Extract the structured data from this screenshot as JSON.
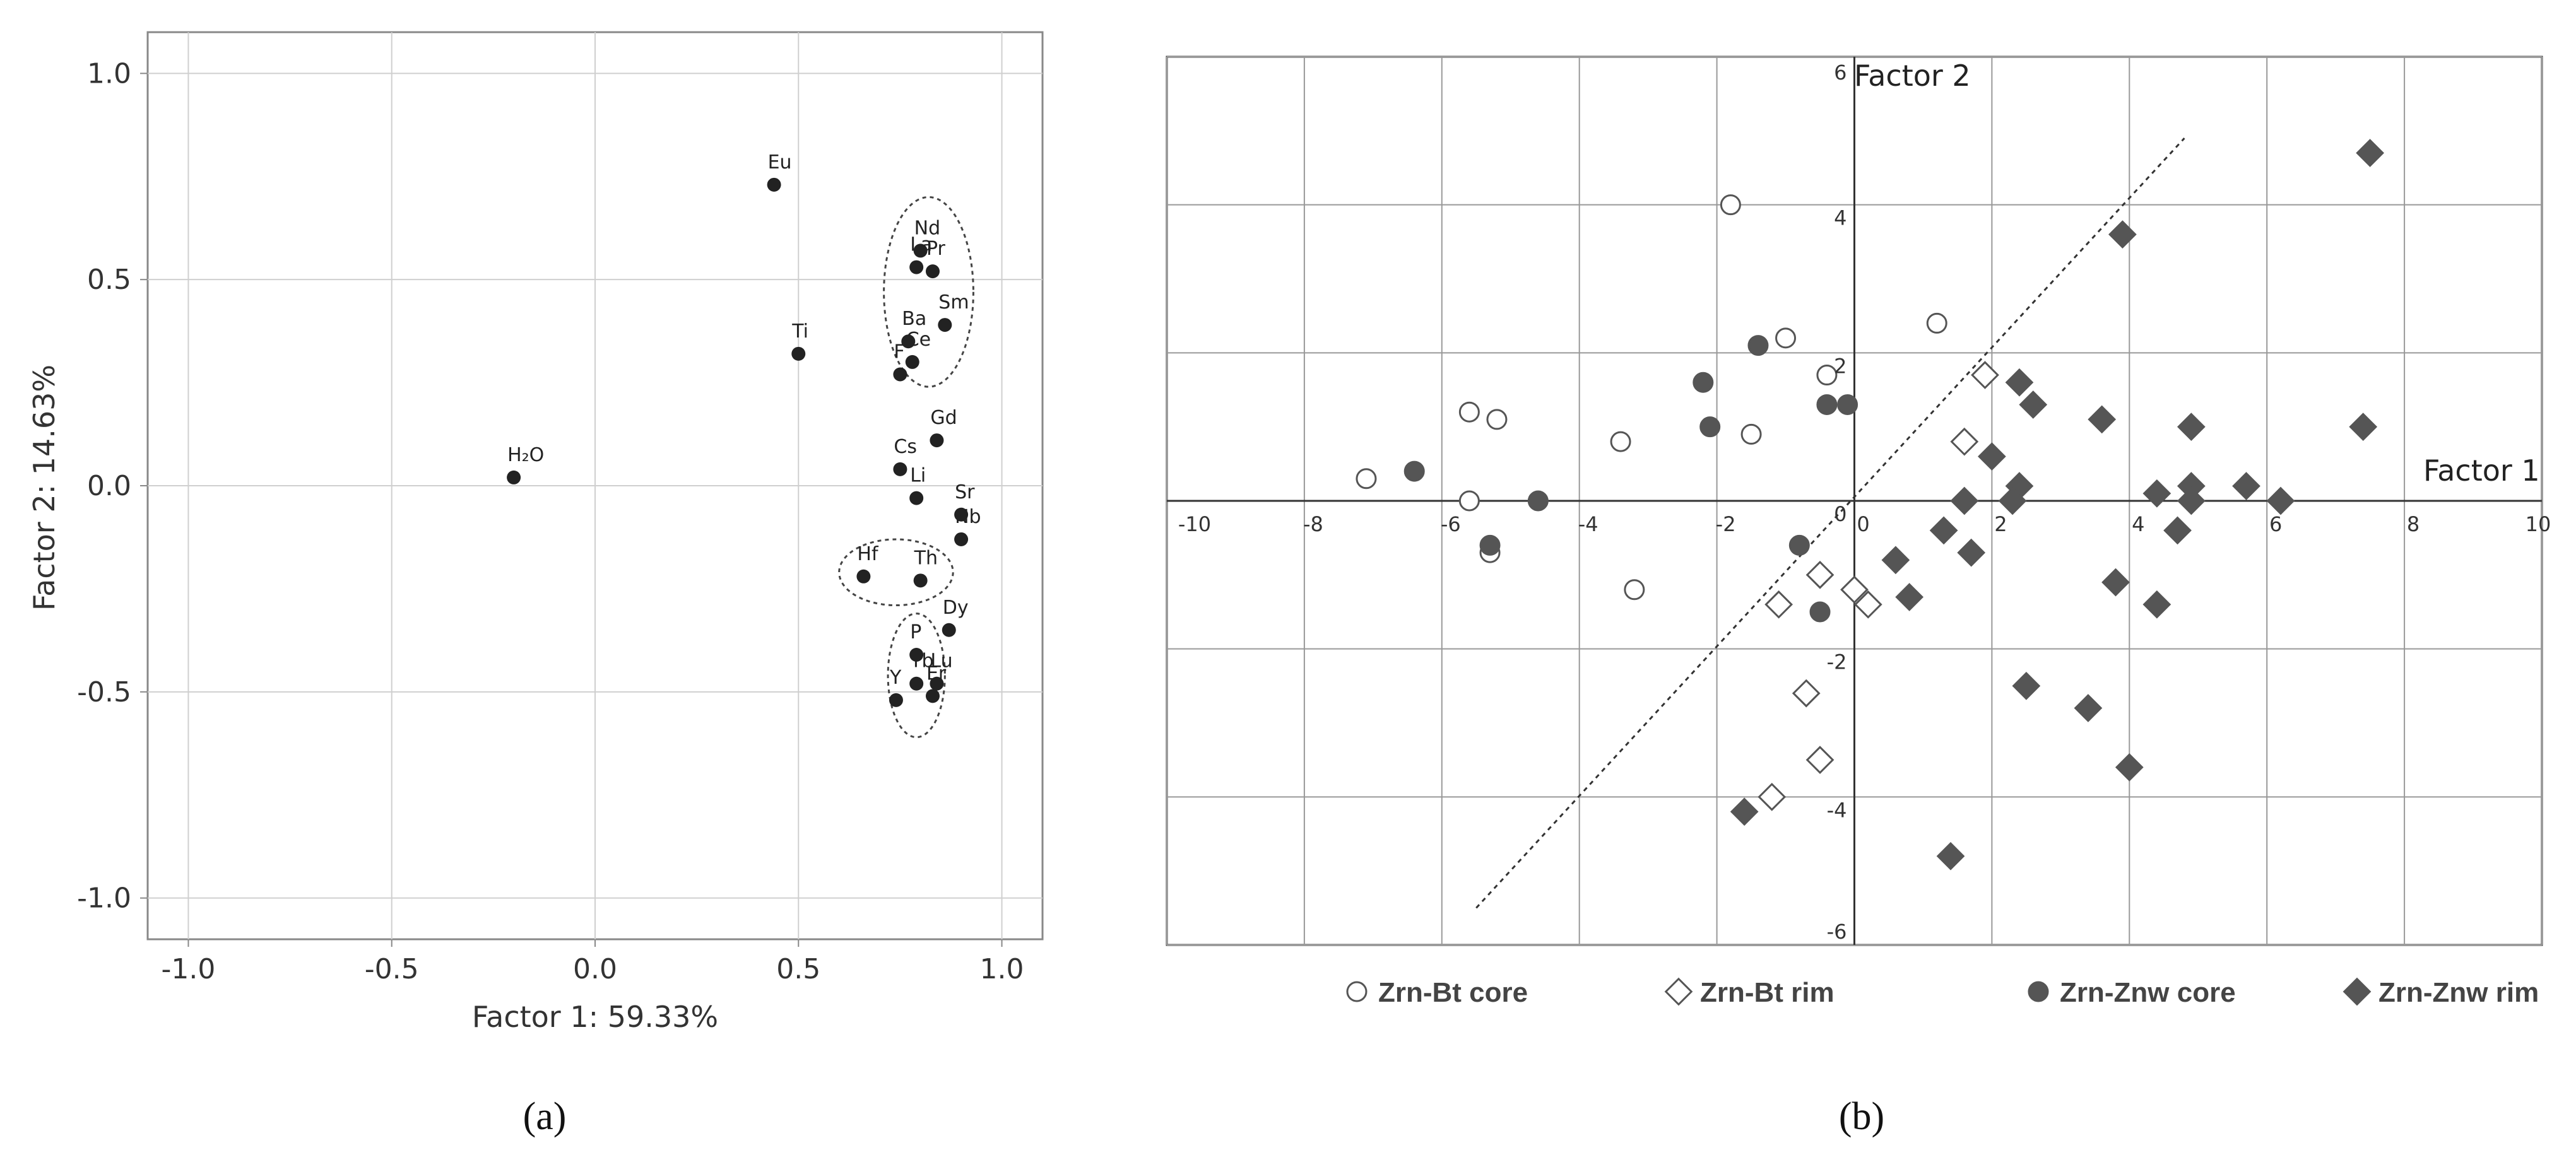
{
  "chart_data": [
    {
      "type": "scatter",
      "panel_label": "(a)",
      "xlabel": "Factor 1: 59.33%",
      "ylabel": "Factor 2: 14.63%",
      "xlim": [
        -1.1,
        1.1
      ],
      "ylim": [
        -1.1,
        1.1
      ],
      "xticks": [
        "-1.0",
        "-0.5",
        "0.0",
        "0.5",
        "1.0"
      ],
      "yticks": [
        "1.0",
        "0.5",
        "0.0",
        "-0.5",
        "-1.0"
      ],
      "grid": true,
      "points": [
        {
          "label": "Eu",
          "x": 0.44,
          "y": 0.73
        },
        {
          "label": "Ti",
          "x": 0.5,
          "y": 0.32
        },
        {
          "label": "H₂O",
          "x": -0.2,
          "y": 0.02
        },
        {
          "label": "Nd",
          "x": 0.8,
          "y": 0.57
        },
        {
          "label": "La",
          "x": 0.79,
          "y": 0.53
        },
        {
          "label": "Pr",
          "x": 0.83,
          "y": 0.52
        },
        {
          "label": "Sm",
          "x": 0.86,
          "y": 0.39
        },
        {
          "label": "Ba",
          "x": 0.77,
          "y": 0.35
        },
        {
          "label": "Ce",
          "x": 0.78,
          "y": 0.3
        },
        {
          "label": "F",
          "x": 0.75,
          "y": 0.27
        },
        {
          "label": "Gd",
          "x": 0.84,
          "y": 0.11
        },
        {
          "label": "Cs",
          "x": 0.75,
          "y": 0.04
        },
        {
          "label": "Li",
          "x": 0.79,
          "y": -0.03
        },
        {
          "label": "Sr",
          "x": 0.9,
          "y": -0.07
        },
        {
          "label": "Nb",
          "x": 0.9,
          "y": -0.13
        },
        {
          "label": "Hf",
          "x": 0.66,
          "y": -0.22
        },
        {
          "label": "Th",
          "x": 0.8,
          "y": -0.23
        },
        {
          "label": "Dy",
          "x": 0.87,
          "y": -0.35
        },
        {
          "label": "P",
          "x": 0.79,
          "y": -0.41
        },
        {
          "label": "Yb",
          "x": 0.79,
          "y": -0.48
        },
        {
          "label": "Lu",
          "x": 0.84,
          "y": -0.48
        },
        {
          "label": "Y",
          "x": 0.74,
          "y": -0.52
        },
        {
          "label": "Er",
          "x": 0.83,
          "y": -0.51
        }
      ],
      "groups": [
        {
          "members": [
            "Nd",
            "La",
            "Pr",
            "Sm",
            "Ba",
            "Ce"
          ],
          "center": [
            0.82,
            0.47
          ],
          "radius": [
            0.11,
            0.23
          ]
        },
        {
          "members": [
            "Hf",
            "Th"
          ],
          "center": [
            0.74,
            -0.21
          ],
          "radius": [
            0.14,
            0.08
          ]
        },
        {
          "members": [
            "P",
            "Yb",
            "Lu",
            "Y",
            "Er"
          ],
          "center": [
            0.79,
            -0.46
          ],
          "radius": [
            0.07,
            0.15
          ]
        }
      ]
    },
    {
      "type": "scatter",
      "panel_label": "(b)",
      "xlabel": "Factor 1",
      "ylabel": "Factor 2",
      "xlim": [
        -10,
        10
      ],
      "ylim": [
        -6,
        6
      ],
      "xticks": [
        "-10",
        "-8",
        "-6",
        "-4",
        "-2",
        "0",
        "2",
        "4",
        "6",
        "8",
        "10"
      ],
      "yticks": [
        "6",
        "4",
        "2",
        "0",
        "-2",
        "-4",
        "-6"
      ],
      "grid": true,
      "legend_position": "bottom",
      "dashed_line": {
        "x1": -5.5,
        "y1": -5.5,
        "x2": 4.8,
        "y2": 4.9
      },
      "series": [
        {
          "name": "Zrn-Bt core",
          "marker": "circle",
          "filled": false,
          "color": "#ffffff",
          "points": [
            [
              -1.8,
              4.0
            ],
            [
              1.2,
              2.4
            ],
            [
              -1.0,
              2.2
            ],
            [
              -5.6,
              1.2
            ],
            [
              -5.2,
              1.1
            ],
            [
              -0.4,
              1.7
            ],
            [
              -3.4,
              0.8
            ],
            [
              -1.5,
              0.9
            ],
            [
              -7.1,
              0.3
            ],
            [
              -5.6,
              0.0
            ],
            [
              -5.3,
              -0.7
            ],
            [
              -3.2,
              -1.2
            ]
          ]
        },
        {
          "name": "Zrn-Bt rim",
          "marker": "diamond",
          "filled": false,
          "color": "#ffffff",
          "points": [
            [
              1.9,
              1.7
            ],
            [
              1.6,
              0.8
            ],
            [
              -0.5,
              -1.0
            ],
            [
              -1.1,
              -1.4
            ],
            [
              0.0,
              -1.2
            ],
            [
              0.2,
              -1.4
            ],
            [
              -0.7,
              -2.6
            ],
            [
              -0.5,
              -3.5
            ],
            [
              -1.2,
              -4.0
            ]
          ]
        },
        {
          "name": "Zrn-Znw core",
          "marker": "circle",
          "filled": true,
          "color": "#555555",
          "points": [
            [
              -1.4,
              2.1
            ],
            [
              -2.2,
              1.6
            ],
            [
              -2.1,
              1.0
            ],
            [
              -0.4,
              1.3
            ],
            [
              -0.1,
              1.3
            ],
            [
              -6.4,
              0.4
            ],
            [
              -4.6,
              0.0
            ],
            [
              -5.3,
              -0.6
            ],
            [
              -0.8,
              -0.6
            ],
            [
              -0.5,
              -1.5
            ]
          ]
        },
        {
          "name": "Zrn-Znw rim",
          "marker": "diamond",
          "filled": true,
          "color": "#555555",
          "points": [
            [
              7.5,
              4.7
            ],
            [
              3.9,
              3.6
            ],
            [
              2.4,
              1.6
            ],
            [
              2.6,
              1.3
            ],
            [
              3.6,
              1.1
            ],
            [
              4.9,
              1.0
            ],
            [
              7.4,
              1.0
            ],
            [
              2.0,
              0.6
            ],
            [
              2.4,
              0.2
            ],
            [
              4.4,
              0.1
            ],
            [
              4.9,
              0.2
            ],
            [
              5.7,
              0.2
            ],
            [
              6.2,
              0.0
            ],
            [
              1.6,
              0.0
            ],
            [
              2.3,
              0.0
            ],
            [
              4.9,
              0.0
            ],
            [
              1.3,
              -0.4
            ],
            [
              4.7,
              -0.4
            ],
            [
              1.7,
              -0.7
            ],
            [
              0.6,
              -0.8
            ],
            [
              0.8,
              -1.3
            ],
            [
              3.8,
              -1.1
            ],
            [
              4.4,
              -1.4
            ],
            [
              2.5,
              -2.5
            ],
            [
              3.4,
              -2.8
            ],
            [
              4.0,
              -3.6
            ],
            [
              -1.6,
              -4.2
            ],
            [
              1.4,
              -4.8
            ]
          ]
        }
      ]
    }
  ]
}
